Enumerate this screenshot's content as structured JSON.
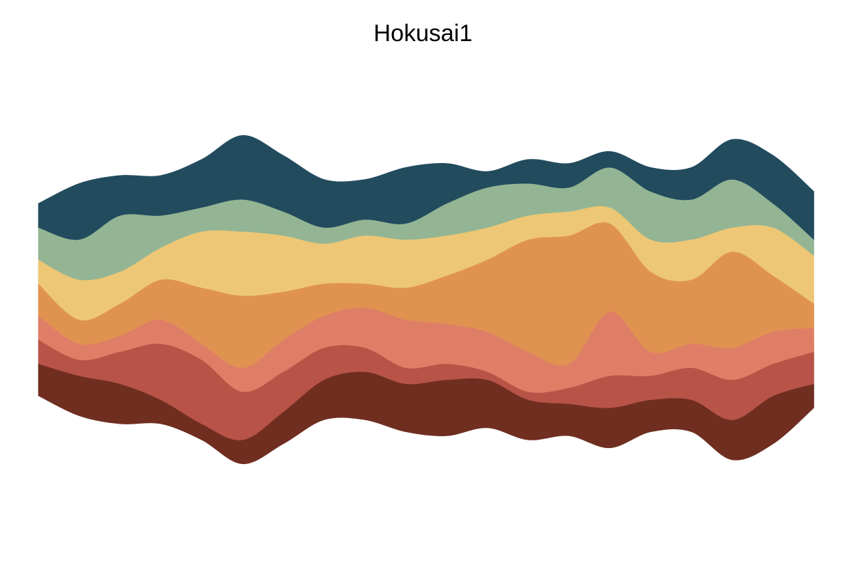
{
  "chart_data": {
    "type": "area",
    "layout": "streamgraph",
    "baseline": "centered",
    "smoothing": "spline",
    "grid": false,
    "axes": false,
    "legend": false,
    "title": "Hokusai1",
    "x": [
      1,
      2,
      3,
      4,
      5,
      6,
      7,
      8,
      9,
      10,
      11,
      12,
      13,
      14,
      15,
      16,
      17,
      18,
      19,
      20
    ],
    "series": [
      {
        "color": "#6f2e20",
        "values": [
          4,
          5,
          5,
          3,
          2,
          3,
          4,
          5,
          6,
          6,
          7,
          6,
          5,
          4,
          5,
          4,
          4,
          5,
          6,
          3
        ]
      },
      {
        "color": "#b75347",
        "values": [
          3,
          2,
          4,
          7,
          8,
          6,
          5,
          4,
          3,
          2,
          2,
          1,
          1,
          2,
          4,
          3,
          4,
          5,
          4,
          4
        ]
      },
      {
        "color": "#df7e66",
        "values": [
          3,
          2,
          2,
          3,
          2,
          3,
          4,
          4,
          5,
          6,
          5,
          5,
          5,
          3,
          8,
          3,
          3,
          4,
          4,
          3
        ]
      },
      {
        "color": "#e09351",
        "values": [
          4,
          3,
          4,
          5,
          7,
          9,
          6,
          4,
          3,
          4,
          6,
          9,
          14,
          16,
          11,
          10,
          8,
          12,
          7,
          3
        ]
      },
      {
        "color": "#edc775",
        "values": [
          3,
          5,
          4,
          4,
          7,
          8,
          7,
          5,
          6,
          6,
          5,
          4,
          3,
          3,
          2,
          4,
          5,
          3,
          6,
          6
        ]
      },
      {
        "color": "#94b594",
        "values": [
          4,
          5,
          7,
          4,
          3,
          4,
          3,
          2,
          2,
          2,
          4,
          5,
          4,
          3,
          5,
          6,
          5,
          6,
          3,
          2
        ]
      },
      {
        "color": "#224b5e",
        "values": [
          3,
          7,
          5,
          5,
          6,
          8,
          7,
          6,
          5,
          7,
          5,
          2,
          3,
          3,
          2,
          3,
          4,
          5,
          6,
          6
        ]
      }
    ]
  }
}
